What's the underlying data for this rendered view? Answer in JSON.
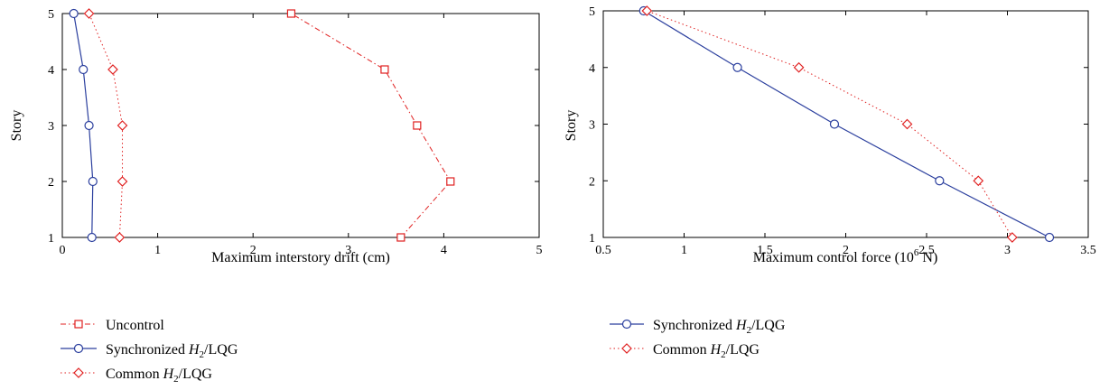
{
  "colors": {
    "uncontrol": "#e02020",
    "synchronized": "#2b3f9e",
    "common": "#e02020",
    "axis": "#000000"
  },
  "chart_data": [
    {
      "type": "line",
      "xlabel": "Maximum interstory drift (cm)",
      "ylabel": "Story",
      "xlim": [
        0,
        5
      ],
      "ylim": [
        1,
        5
      ],
      "xticks": [
        0,
        1,
        2,
        3,
        4,
        5
      ],
      "yticks": [
        1,
        2,
        3,
        4,
        5
      ],
      "legend_position": "below",
      "series": [
        {
          "name": "Uncontrol",
          "marker": "square",
          "line": "dash-dot",
          "points": [
            [
              3.55,
              1
            ],
            [
              4.07,
              2
            ],
            [
              3.72,
              3
            ],
            [
              3.38,
              4
            ],
            [
              2.4,
              5
            ]
          ]
        },
        {
          "name": "Synchronized H2/LQG",
          "marker": "circle",
          "line": "solid",
          "points": [
            [
              0.31,
              1
            ],
            [
              0.32,
              2
            ],
            [
              0.28,
              3
            ],
            [
              0.22,
              4
            ],
            [
              0.12,
              5
            ]
          ]
        },
        {
          "name": "Common H2/LQG",
          "marker": "diamond",
          "line": "dotted",
          "points": [
            [
              0.6,
              1
            ],
            [
              0.63,
              2
            ],
            [
              0.63,
              3
            ],
            [
              0.53,
              4
            ],
            [
              0.28,
              5
            ]
          ]
        }
      ]
    },
    {
      "type": "line",
      "xlabel": "Maximum control force (10^6 N)",
      "ylabel": "Story",
      "xlim": [
        0.5,
        3.5
      ],
      "ylim": [
        1,
        5
      ],
      "xticks": [
        0.5,
        1,
        1.5,
        2,
        2.5,
        3,
        3.5
      ],
      "yticks": [
        1,
        2,
        3,
        4,
        5
      ],
      "legend_position": "below",
      "series": [
        {
          "name": "Synchronized H2/LQG",
          "marker": "circle",
          "line": "solid",
          "points": [
            [
              3.26,
              1
            ],
            [
              2.58,
              2
            ],
            [
              1.93,
              3
            ],
            [
              1.33,
              4
            ],
            [
              0.75,
              5
            ]
          ]
        },
        {
          "name": "Common H2/LQG",
          "marker": "diamond",
          "line": "dotted",
          "points": [
            [
              3.03,
              1
            ],
            [
              2.82,
              2
            ],
            [
              2.38,
              3
            ],
            [
              1.71,
              4
            ],
            [
              0.77,
              5
            ]
          ]
        }
      ]
    }
  ],
  "legend_labels": {
    "uncontrol": "Uncontrol",
    "sync_prefix": "Synchronized ",
    "common_prefix": "Common ",
    "h": "H",
    "sub": "2",
    "suffix": "/LQG"
  },
  "axis_text": {
    "left_xlabel": "Maximum interstory drift (cm)",
    "left_ylabel": "Story",
    "right_xlabel_prefix": "Maximum control force (10",
    "right_xlabel_exp": "6",
    "right_xlabel_suffix": " N)",
    "right_ylabel": "Story"
  }
}
